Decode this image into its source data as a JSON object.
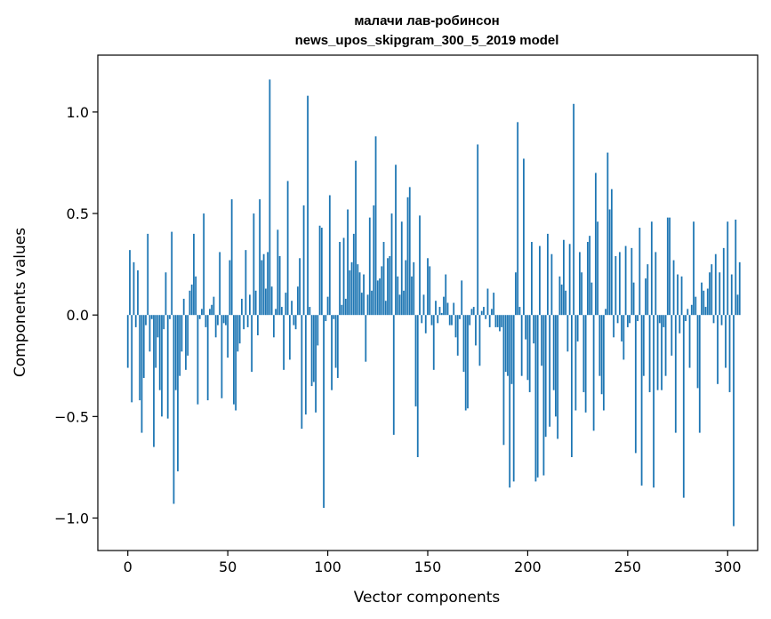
{
  "chart_data": {
    "type": "bar",
    "title": "малачи лав-робинсон",
    "subtitle": "news_upos_skipgram_300_5_2019 model",
    "xlabel": "Vector components",
    "ylabel": "Components values",
    "xlim": [
      -15,
      315
    ],
    "ylim": [
      -1.16,
      1.28
    ],
    "xticks": [
      0,
      50,
      100,
      150,
      200,
      250,
      300
    ],
    "yticks": [
      -1.0,
      -0.5,
      0.0,
      0.5,
      1.0
    ],
    "ytick_labels": [
      "−1.0",
      "−0.5",
      "0.0",
      "0.5",
      "1.0"
    ],
    "grid": false,
    "legend": "none",
    "bar_color": "#1f77b4",
    "values": [
      -0.26,
      0.32,
      -0.43,
      0.26,
      -0.06,
      0.22,
      -0.42,
      -0.58,
      -0.31,
      -0.05,
      0.4,
      -0.18,
      -0.02,
      -0.65,
      -0.26,
      -0.11,
      -0.37,
      -0.5,
      -0.07,
      0.21,
      -0.51,
      -0.02,
      0.41,
      -0.93,
      -0.37,
      -0.77,
      -0.3,
      -0.18,
      0.08,
      -0.27,
      -0.2,
      0.12,
      0.15,
      0.4,
      0.19,
      -0.44,
      -0.02,
      0.03,
      0.5,
      -0.06,
      -0.42,
      0.03,
      0.05,
      0.09,
      -0.11,
      -0.05,
      0.31,
      -0.41,
      -0.04,
      -0.05,
      -0.21,
      0.27,
      0.57,
      -0.44,
      -0.47,
      -0.18,
      -0.14,
      0.08,
      -0.07,
      0.32,
      -0.06,
      0.1,
      -0.28,
      0.5,
      0.12,
      -0.1,
      0.57,
      0.27,
      0.3,
      0.13,
      0.31,
      1.16,
      0.14,
      -0.11,
      0.03,
      0.42,
      0.29,
      0.04,
      -0.27,
      0.11,
      0.66,
      -0.22,
      0.07,
      -0.05,
      -0.07,
      0.14,
      0.28,
      -0.56,
      0.54,
      -0.49,
      1.08,
      0.04,
      -0.35,
      -0.33,
      -0.48,
      -0.15,
      0.44,
      0.43,
      -0.95,
      -0.03,
      0.09,
      0.59,
      -0.37,
      -0.02,
      -0.26,
      -0.31,
      0.36,
      0.05,
      0.38,
      0.08,
      0.52,
      0.22,
      0.26,
      0.4,
      0.76,
      0.25,
      0.21,
      0.11,
      0.2,
      -0.23,
      0.1,
      0.48,
      0.12,
      0.54,
      0.88,
      0.17,
      0.18,
      0.24,
      0.36,
      0.07,
      0.28,
      0.29,
      0.5,
      -0.59,
      0.74,
      0.19,
      0.1,
      0.46,
      0.12,
      0.27,
      0.58,
      0.63,
      0.19,
      0.26,
      -0.45,
      -0.7,
      0.49,
      -0.04,
      0.1,
      -0.09,
      0.28,
      0.24,
      -0.05,
      -0.27,
      0.07,
      -0.04,
      0.04,
      0.01,
      0.09,
      0.2,
      0.06,
      -0.05,
      -0.05,
      0.06,
      -0.11,
      -0.2,
      -0.02,
      0.17,
      -0.28,
      -0.47,
      -0.46,
      -0.05,
      0.03,
      0.04,
      -0.15,
      0.84,
      -0.25,
      0.02,
      0.04,
      -0.02,
      0.13,
      -0.06,
      0.03,
      0.11,
      -0.06,
      -0.06,
      -0.08,
      -0.06,
      -0.64,
      -0.28,
      -0.3,
      -0.85,
      -0.34,
      -0.82,
      0.21,
      0.95,
      0.04,
      -0.3,
      0.77,
      -0.12,
      -0.32,
      -0.38,
      0.36,
      -0.14,
      -0.82,
      -0.8,
      0.34,
      -0.25,
      -0.79,
      -0.6,
      0.4,
      -0.55,
      0.3,
      -0.37,
      -0.5,
      -0.61,
      0.19,
      0.15,
      0.37,
      0.12,
      -0.18,
      0.35,
      -0.7,
      1.04,
      -0.47,
      -0.13,
      0.31,
      0.21,
      -0.38,
      -0.48,
      0.36,
      0.39,
      0.16,
      -0.57,
      0.7,
      0.46,
      -0.3,
      -0.39,
      -0.47,
      0.03,
      0.8,
      0.52,
      0.62,
      -0.11,
      0.29,
      -0.04,
      0.31,
      -0.13,
      -0.22,
      0.34,
      -0.06,
      -0.04,
      0.33,
      0.16,
      -0.68,
      -0.03,
      0.43,
      -0.84,
      -0.3,
      0.18,
      0.25,
      -0.38,
      0.46,
      -0.85,
      0.31,
      -0.37,
      -0.04,
      -0.37,
      -0.06,
      -0.3,
      0.48,
      0.48,
      -0.2,
      0.27,
      -0.58,
      0.2,
      -0.09,
      0.19,
      -0.9,
      -0.03,
      0.03,
      -0.26,
      0.05,
      0.46,
      0.09,
      -0.36,
      -0.58,
      0.16,
      0.12,
      0.04,
      0.13,
      0.21,
      0.25,
      -0.04,
      0.3,
      -0.34,
      0.21,
      -0.05,
      0.33,
      -0.26,
      0.46,
      -0.38,
      0.2,
      -1.04,
      0.47,
      0.1,
      0.26
    ]
  }
}
